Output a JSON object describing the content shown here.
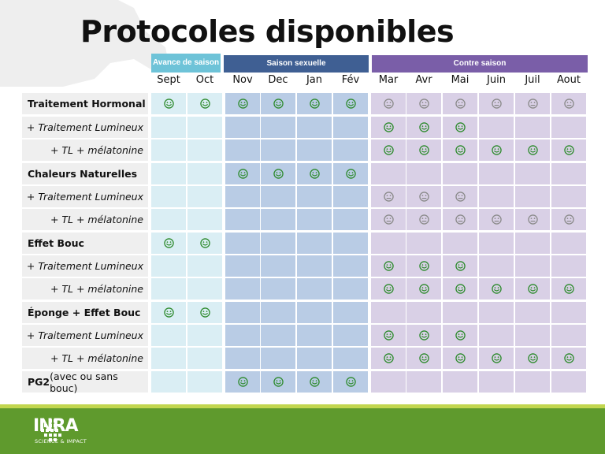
{
  "title": "Protocoles disponibles",
  "seasons": {
    "avance": "Avance de saison",
    "sexuelle": "Saison sexuelle",
    "contre": "Contre saison"
  },
  "months": [
    "Sept",
    "Oct",
    "Nov",
    "Dec",
    "Jan",
    "Fév",
    "Mar",
    "Avr",
    "Mai",
    "Juin",
    "Juil",
    "Aout"
  ],
  "colors": {
    "happy": "#2e8b2e",
    "neutral": "#8a8a8a",
    "avance": "#6ec3d8",
    "sexuelle": "#3f5f93",
    "contre": "#7a5ea8"
  },
  "rows": [
    {
      "label": "Traitement Hormonal",
      "type": "main",
      "cells": [
        "h",
        "h",
        "h",
        "h",
        "h",
        "h",
        "n",
        "n",
        "n",
        "n",
        "n",
        "n"
      ]
    },
    {
      "label": "+ Traitement Lumineux",
      "type": "sub",
      "cells": [
        "",
        "",
        "",
        "",
        "",
        "",
        "h",
        "h",
        "h",
        "",
        "",
        ""
      ]
    },
    {
      "label": "+ TL + mélatonine",
      "type": "sub",
      "cells": [
        "",
        "",
        "",
        "",
        "",
        "",
        "h",
        "h",
        "h",
        "h",
        "h",
        "h"
      ]
    },
    {
      "label": "Chaleurs Naturelles",
      "type": "main",
      "cells": [
        "",
        "",
        "h",
        "h",
        "h",
        "h",
        "",
        "",
        "",
        "",
        "",
        ""
      ]
    },
    {
      "label": "+ Traitement Lumineux",
      "type": "sub",
      "cells": [
        "",
        "",
        "",
        "",
        "",
        "",
        "n",
        "n",
        "n",
        "",
        "",
        ""
      ]
    },
    {
      "label": "+ TL + mélatonine",
      "type": "sub",
      "cells": [
        "",
        "",
        "",
        "",
        "",
        "",
        "n",
        "n",
        "n",
        "n",
        "n",
        "n"
      ]
    },
    {
      "label": "Effet Bouc",
      "type": "main",
      "cells": [
        "h",
        "h",
        "",
        "",
        "",
        "",
        "",
        "",
        "",
        "",
        "",
        ""
      ]
    },
    {
      "label": "+ Traitement Lumineux",
      "type": "sub",
      "cells": [
        "",
        "",
        "",
        "",
        "",
        "",
        "h",
        "h",
        "h",
        "",
        "",
        ""
      ]
    },
    {
      "label": "+ TL + mélatonine",
      "type": "sub",
      "cells": [
        "",
        "",
        "",
        "",
        "",
        "",
        "h",
        "h",
        "h",
        "h",
        "h",
        "h"
      ]
    },
    {
      "label": "Éponge +  Effet Bouc",
      "type": "main",
      "cells": [
        "h",
        "h",
        "",
        "",
        "",
        "",
        "",
        "",
        "",
        "",
        "",
        ""
      ]
    },
    {
      "label": "+ Traitement Lumineux",
      "type": "sub",
      "cells": [
        "",
        "",
        "",
        "",
        "",
        "",
        "h",
        "h",
        "h",
        "",
        "",
        ""
      ]
    },
    {
      "label": "+ TL + mélatonine",
      "type": "sub",
      "cells": [
        "",
        "",
        "",
        "",
        "",
        "",
        "h",
        "h",
        "h",
        "h",
        "h",
        "h"
      ]
    },
    {
      "label": "PG2",
      "label_extra": " (avec ou sans bouc)",
      "type": "main",
      "cells": [
        "",
        "",
        "h",
        "h",
        "h",
        "h",
        "",
        "",
        "",
        "",
        "",
        ""
      ]
    }
  ],
  "logo": {
    "name": "INRA",
    "tagline": "SCIENCE & IMPACT"
  }
}
